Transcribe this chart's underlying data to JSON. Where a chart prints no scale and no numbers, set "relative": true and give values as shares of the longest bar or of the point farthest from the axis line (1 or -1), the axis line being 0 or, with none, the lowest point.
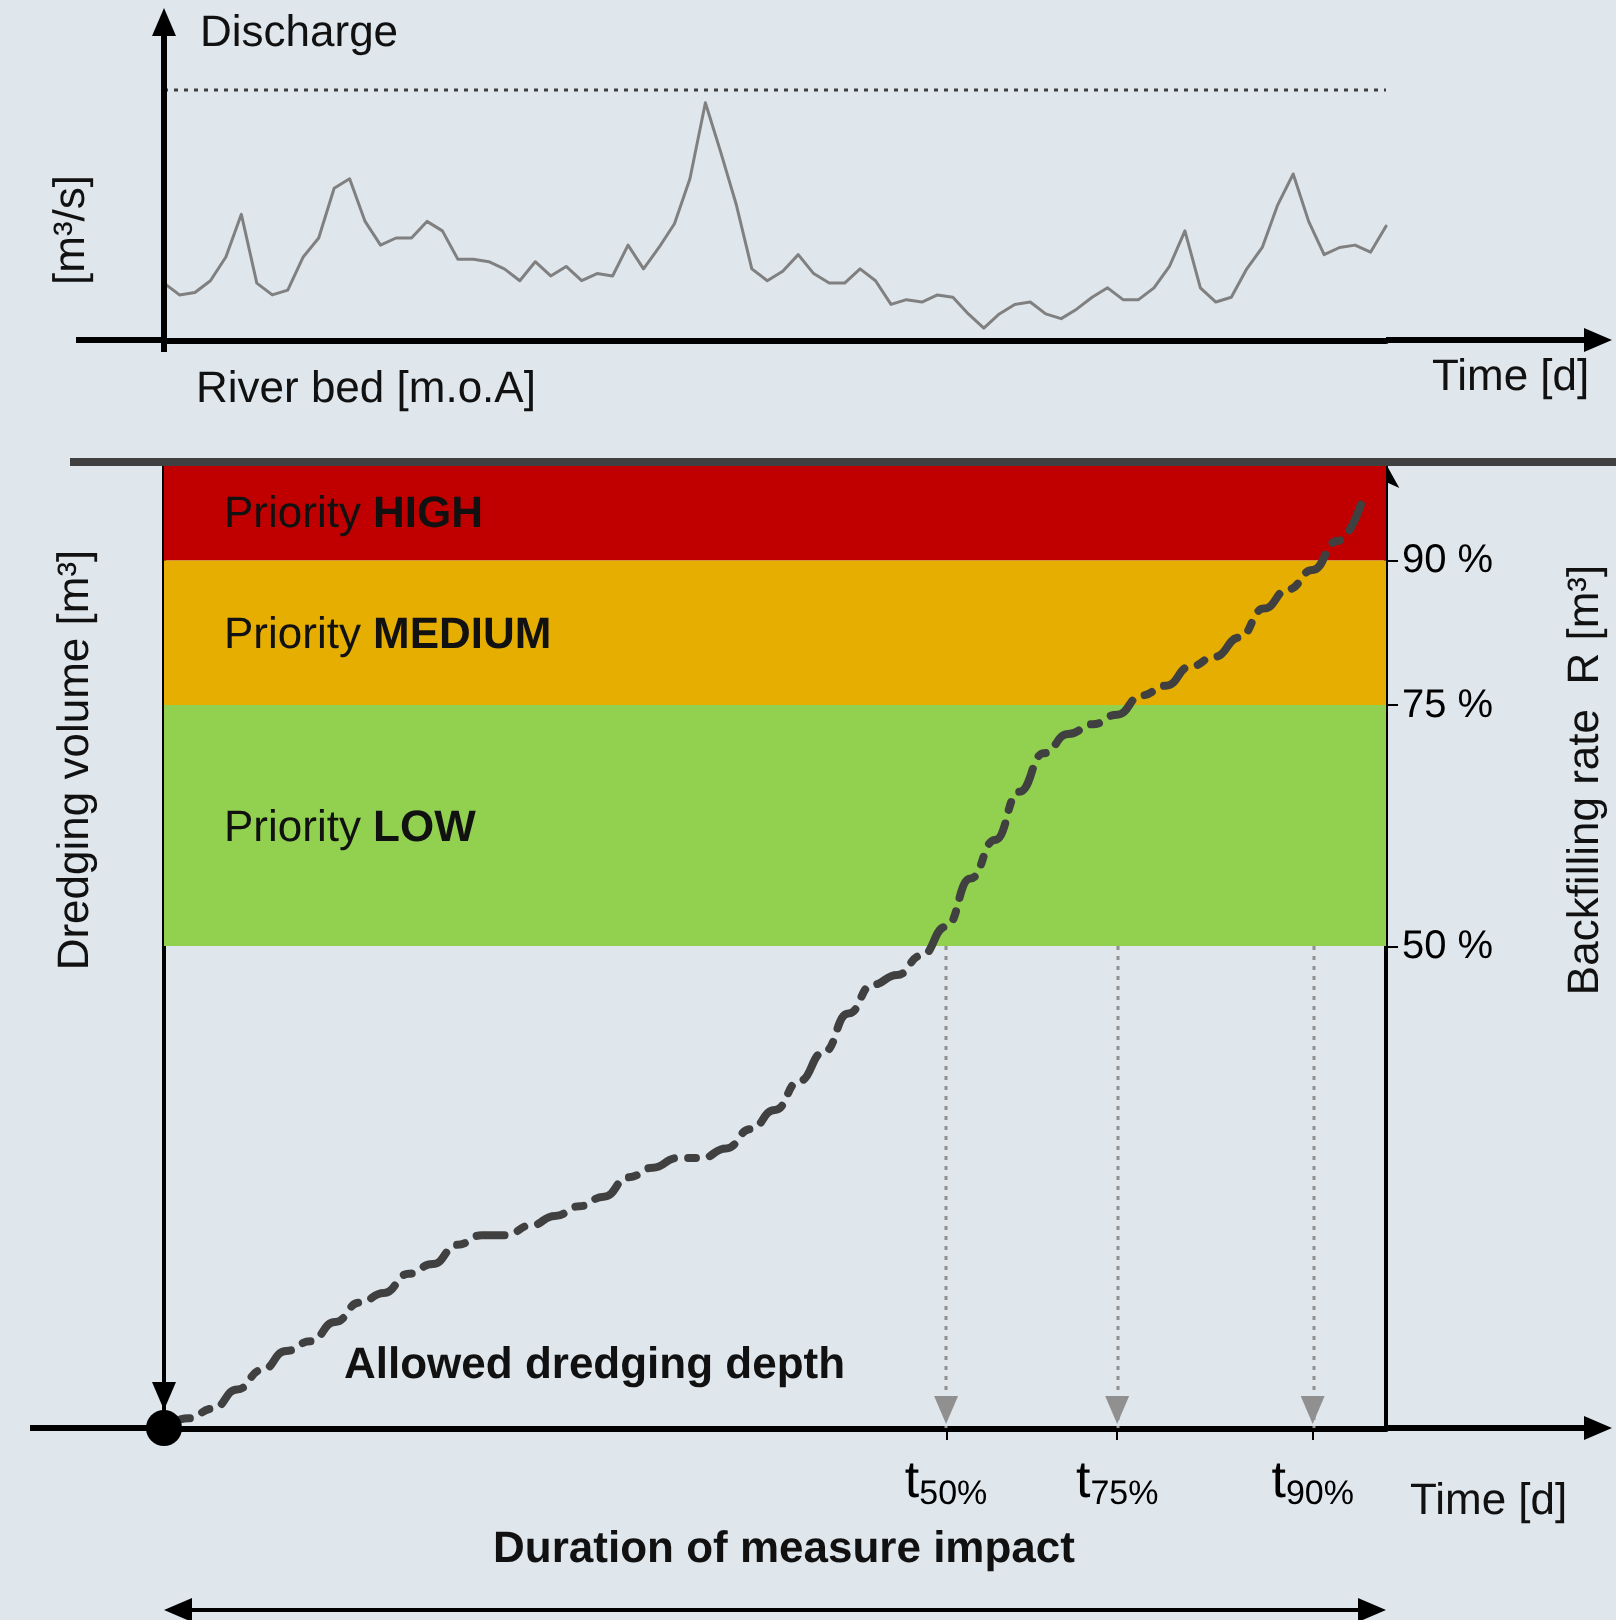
{
  "chart_data": [
    {
      "type": "line",
      "relative": true,
      "ylabel": "[m³/s]",
      "xlabel": "Time [d]",
      "annotations": [
        "Discharge",
        "River bed [m.o.A]"
      ],
      "categories": [
        null,
        null,
        null,
        null,
        null,
        null,
        null,
        null,
        null,
        null,
        null,
        null,
        null,
        null,
        null,
        null,
        null,
        null,
        null,
        null,
        null,
        null,
        null,
        null,
        null,
        null,
        null,
        null,
        null,
        null,
        null,
        null,
        null,
        null,
        null,
        null,
        null,
        null,
        null,
        null,
        null,
        null,
        null,
        null,
        null,
        null,
        null,
        null,
        null,
        null,
        null,
        null,
        null,
        null,
        null,
        null,
        null,
        null,
        null,
        null,
        null,
        null,
        null,
        null,
        null,
        null,
        null,
        null,
        null,
        null,
        null,
        null,
        null,
        null,
        null,
        null,
        null,
        null,
        null,
        null
      ],
      "series": [
        {
          "color": "#808080",
          "values": [
            0.24,
            0.19,
            0.2,
            0.25,
            0.35,
            0.53,
            0.24,
            0.19,
            0.21,
            0.35,
            0.43,
            0.64,
            0.68,
            0.5,
            0.4,
            0.43,
            0.43,
            0.5,
            0.46,
            0.34,
            0.34,
            0.33,
            0.3,
            0.25,
            0.33,
            0.27,
            0.31,
            0.25,
            0.28,
            0.27,
            0.4,
            0.3,
            0.39,
            0.49,
            0.68,
            1,
            0.79,
            0.57,
            0.3,
            0.25,
            0.29,
            0.36,
            0.28,
            0.24,
            0.24,
            0.3,
            0.25,
            0.15,
            0.17,
            0.16,
            0.19,
            0.18,
            0.11,
            0.05,
            0.11,
            0.15,
            0.16,
            0.11,
            0.09,
            0.13,
            0.18,
            0.22,
            0.17,
            0.17,
            0.22,
            0.31,
            0.46,
            0.22,
            0.16,
            0.18,
            0.3,
            0.39,
            0.57,
            0.7,
            0.5,
            0.36,
            0.39,
            0.4,
            0.37,
            0.48
          ]
        }
      ],
      "ref_lines": [
        {
          "axis": "y",
          "value": 1.06,
          "line_style": "dotted",
          "color": "#404040"
        }
      ]
    },
    {
      "type": "line",
      "ylabel": "Dredging volume [m³]",
      "y2label": "Backfilling rate  R [m³]",
      "xlabel": "Time [d]",
      "annotations": [
        "Allowed dredging depth",
        "Duration of measure impact"
      ],
      "categories": [
        null,
        null,
        null,
        null,
        null,
        null,
        null,
        null,
        null,
        null,
        null,
        null,
        null,
        null,
        null,
        null,
        null,
        null,
        null,
        null,
        null,
        null,
        null,
        null,
        null,
        null,
        null,
        null,
        null,
        null,
        null,
        null,
        "t$_{50%}$",
        null,
        null,
        null,
        null,
        null,
        null,
        "t$_{75%}$",
        null,
        null,
        null,
        null,
        null,
        null,
        null,
        "t$_{90%}$",
        null,
        null,
        null
      ],
      "y2lim": [
        0,
        100
      ],
      "y2ticks": [
        {
          "value": 50,
          "label": "50 %"
        },
        {
          "value": 75,
          "label": "75 %"
        },
        {
          "value": 90,
          "label": "90 %"
        }
      ],
      "line_style": "dashed",
      "series": [
        {
          "axis": "y2",
          "color": "#404040",
          "values": [
            0,
            1,
            2,
            4,
            6,
            8,
            9,
            11,
            13,
            14,
            16,
            17,
            19,
            20,
            20,
            21,
            22,
            23,
            24,
            26,
            27,
            28,
            28,
            29,
            31,
            33,
            36,
            39,
            43,
            46,
            47,
            49,
            52,
            57,
            61,
            66,
            70,
            72,
            73,
            74,
            76,
            77,
            79,
            80,
            82,
            85,
            87,
            89,
            92,
            96,
            null
          ]
        }
      ],
      "bands": [
        {
          "axis": "y2",
          "from": 90,
          "to": 100,
          "label": "Priority HIGH",
          "color": "#c00000"
        },
        {
          "axis": "y2",
          "from": 75,
          "to": 90,
          "label": "Priority MEDIUM",
          "color": "#e6ae00"
        },
        {
          "axis": "y2",
          "from": 50,
          "to": 75,
          "label": "Priority LOW",
          "color": "#92d050"
        }
      ],
      "ref_lines": [
        {
          "axis": "x",
          "value": "t$_{50%}$",
          "line_style": "dotted",
          "color": "#909090"
        },
        {
          "axis": "x",
          "value": "t$_{75%}$",
          "line_style": "dotted",
          "color": "#909090"
        },
        {
          "axis": "x",
          "value": "t$_{90%}$",
          "line_style": "dotted",
          "color": "#909090"
        }
      ]
    }
  ]
}
